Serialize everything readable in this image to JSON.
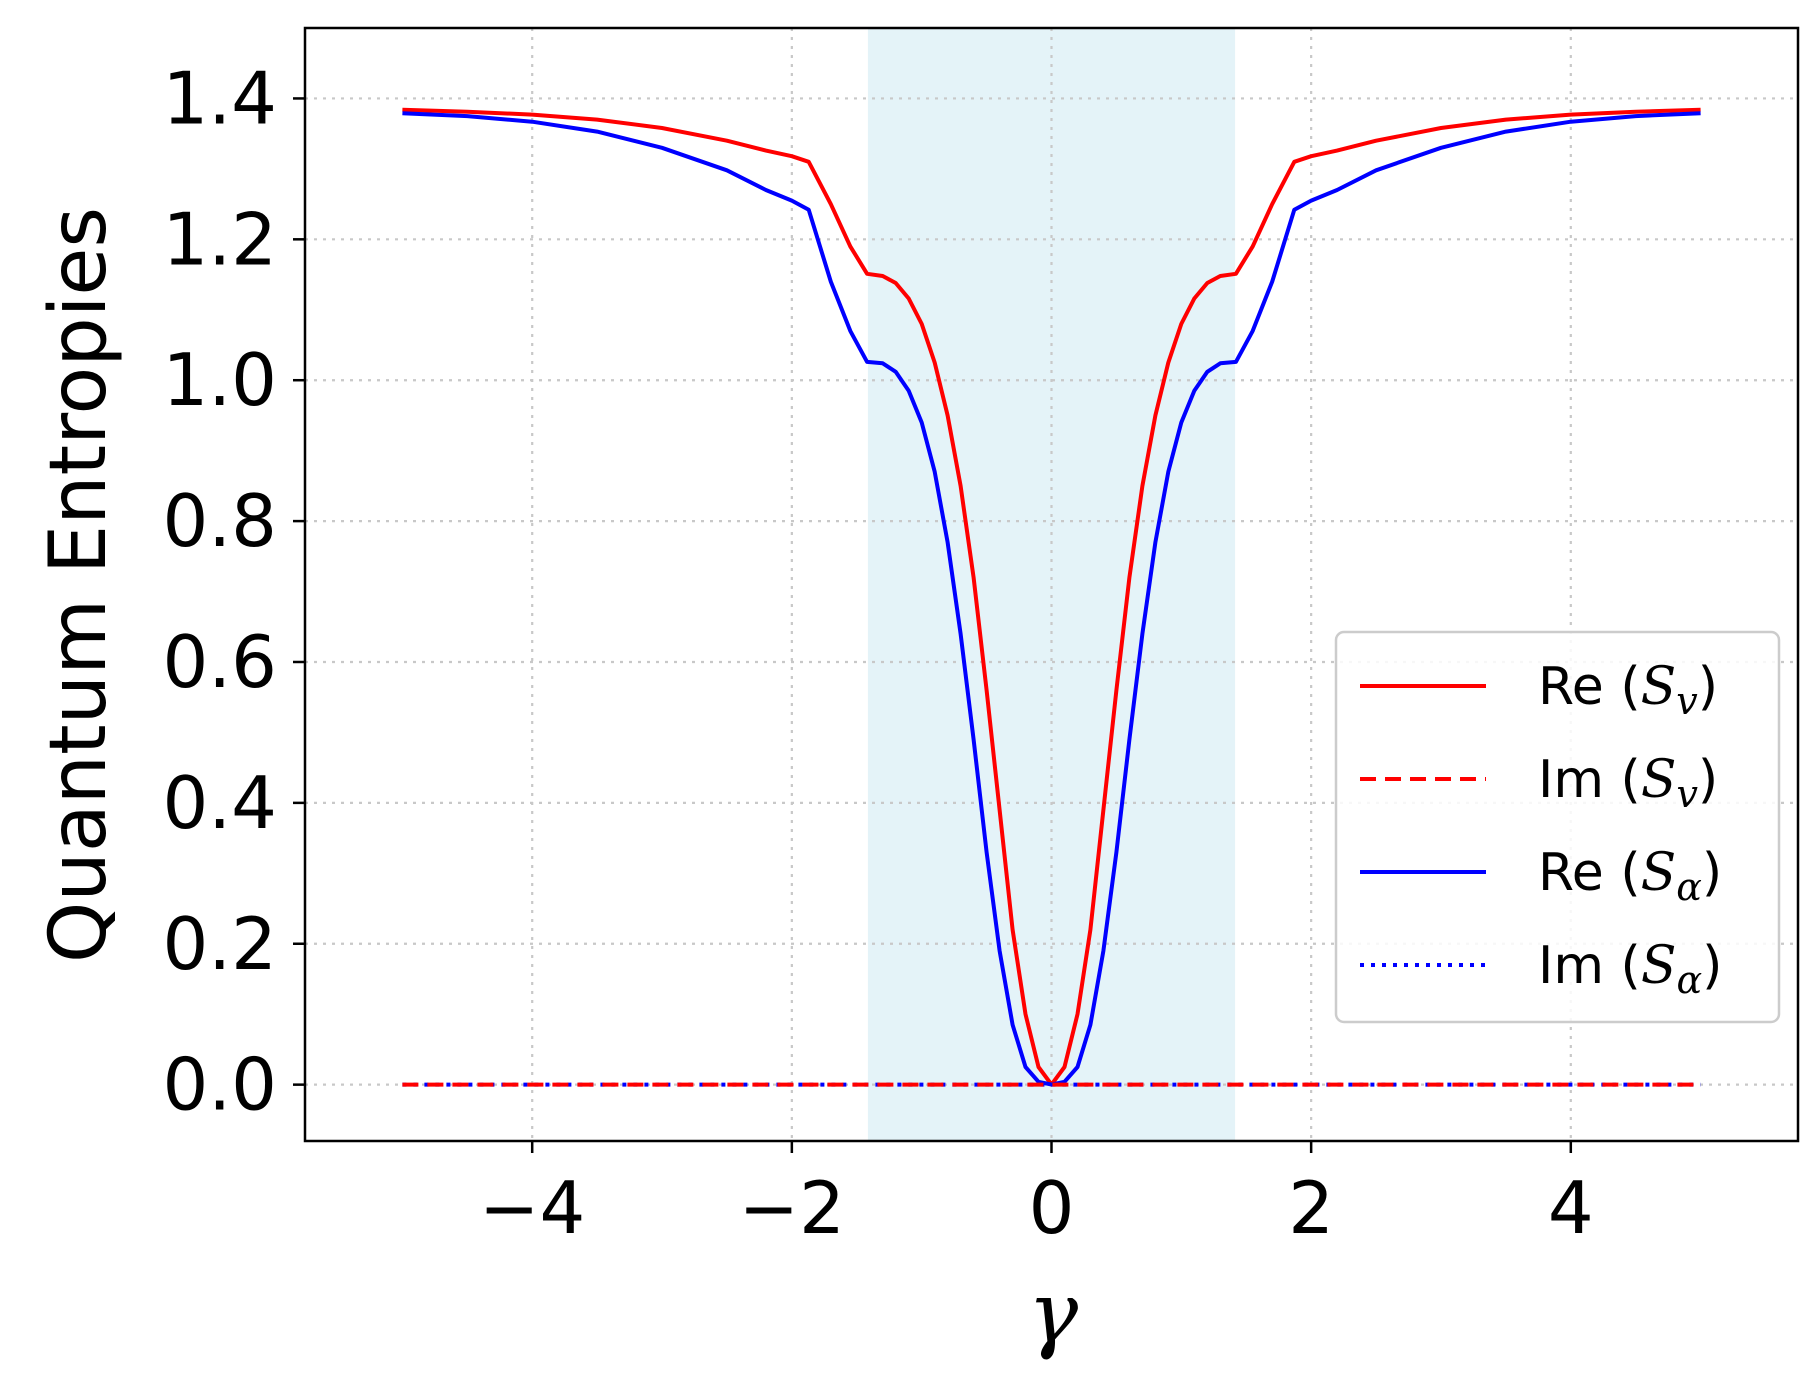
{
  "chart_data": {
    "type": "line",
    "title": "",
    "xlabel": "γ",
    "ylabel": "Quantum Entropies",
    "xlim": [
      -5.75,
      5.75
    ],
    "ylim": [
      -0.08,
      1.5
    ],
    "xticks": [
      -4,
      -2,
      0,
      2,
      4
    ],
    "xtick_labels": [
      "−4",
      "−2",
      "0",
      "2",
      "4"
    ],
    "yticks": [
      0.0,
      0.2,
      0.4,
      0.6,
      0.8,
      1.0,
      1.2,
      1.4
    ],
    "ytick_labels": [
      "0.0",
      "0.2",
      "0.4",
      "0.6",
      "0.8",
      "1.0",
      "1.2",
      "1.4"
    ],
    "grid": true,
    "shaded_region": {
      "x": [
        -1.414,
        1.414
      ],
      "color": "#e4f3f8"
    },
    "legend_position": "lower-right",
    "series": [
      {
        "name": "Re (S_v)",
        "legend_label": "Re (",
        "legend_sub": "S",
        "legend_subscript": "v",
        "color": "#ff0000",
        "style": "solid",
        "x": [
          -5.0,
          -4.5,
          -4.0,
          -3.5,
          -3.0,
          -2.5,
          -2.2,
          -2.0,
          -1.87,
          -1.7,
          -1.55,
          -1.42,
          -1.3,
          -1.2,
          -1.1,
          -1.0,
          -0.9,
          -0.8,
          -0.7,
          -0.6,
          -0.5,
          -0.4,
          -0.3,
          -0.2,
          -0.1,
          0.0,
          0.1,
          0.2,
          0.3,
          0.4,
          0.5,
          0.6,
          0.7,
          0.8,
          0.9,
          1.0,
          1.1,
          1.2,
          1.3,
          1.42,
          1.55,
          1.7,
          1.87,
          2.0,
          2.2,
          2.5,
          3.0,
          3.5,
          4.0,
          4.5,
          5.0
        ],
        "y": [
          1.384,
          1.381,
          1.377,
          1.37,
          1.358,
          1.34,
          1.326,
          1.318,
          1.31,
          1.25,
          1.19,
          1.151,
          1.148,
          1.138,
          1.116,
          1.08,
          1.025,
          0.95,
          0.85,
          0.72,
          0.56,
          0.39,
          0.22,
          0.1,
          0.025,
          0.0,
          0.025,
          0.1,
          0.22,
          0.39,
          0.56,
          0.72,
          0.85,
          0.95,
          1.025,
          1.08,
          1.116,
          1.138,
          1.148,
          1.151,
          1.19,
          1.25,
          1.31,
          1.318,
          1.326,
          1.34,
          1.358,
          1.37,
          1.377,
          1.381,
          1.384
        ]
      },
      {
        "name": "Im (S_v)",
        "legend_label": "Im (",
        "legend_sub": "S",
        "legend_subscript": "v",
        "color": "#ff0000",
        "style": "dashed",
        "x": [
          -5.0,
          5.0
        ],
        "y": [
          0.0,
          0.0
        ]
      },
      {
        "name": "Re (S_α)",
        "legend_label": "Re (",
        "legend_sub": "S",
        "legend_subscript": "α",
        "color": "#0000ff",
        "style": "solid",
        "x": [
          -5.0,
          -4.5,
          -4.0,
          -3.5,
          -3.0,
          -2.5,
          -2.2,
          -2.0,
          -1.87,
          -1.7,
          -1.55,
          -1.42,
          -1.3,
          -1.2,
          -1.1,
          -1.0,
          -0.9,
          -0.8,
          -0.7,
          -0.6,
          -0.5,
          -0.4,
          -0.3,
          -0.2,
          -0.1,
          0.0,
          0.1,
          0.2,
          0.3,
          0.4,
          0.5,
          0.6,
          0.7,
          0.8,
          0.9,
          1.0,
          1.1,
          1.2,
          1.3,
          1.42,
          1.55,
          1.7,
          1.87,
          2.0,
          2.2,
          2.5,
          3.0,
          3.5,
          4.0,
          4.5,
          5.0
        ],
        "y": [
          1.379,
          1.375,
          1.367,
          1.353,
          1.33,
          1.298,
          1.27,
          1.255,
          1.242,
          1.14,
          1.07,
          1.026,
          1.024,
          1.012,
          0.985,
          0.94,
          0.87,
          0.77,
          0.64,
          0.49,
          0.33,
          0.19,
          0.085,
          0.025,
          0.004,
          0.0,
          0.004,
          0.025,
          0.085,
          0.19,
          0.33,
          0.49,
          0.64,
          0.77,
          0.87,
          0.94,
          0.985,
          1.012,
          1.024,
          1.026,
          1.07,
          1.14,
          1.242,
          1.255,
          1.27,
          1.298,
          1.33,
          1.353,
          1.367,
          1.375,
          1.379
        ]
      },
      {
        "name": "Im (S_α)",
        "legend_label": "Im (",
        "legend_sub": "S",
        "legend_subscript": "α",
        "color": "#0000ff",
        "style": "dotted",
        "x": [
          -5.0,
          5.0
        ],
        "y": [
          0.0,
          0.0
        ]
      }
    ]
  }
}
